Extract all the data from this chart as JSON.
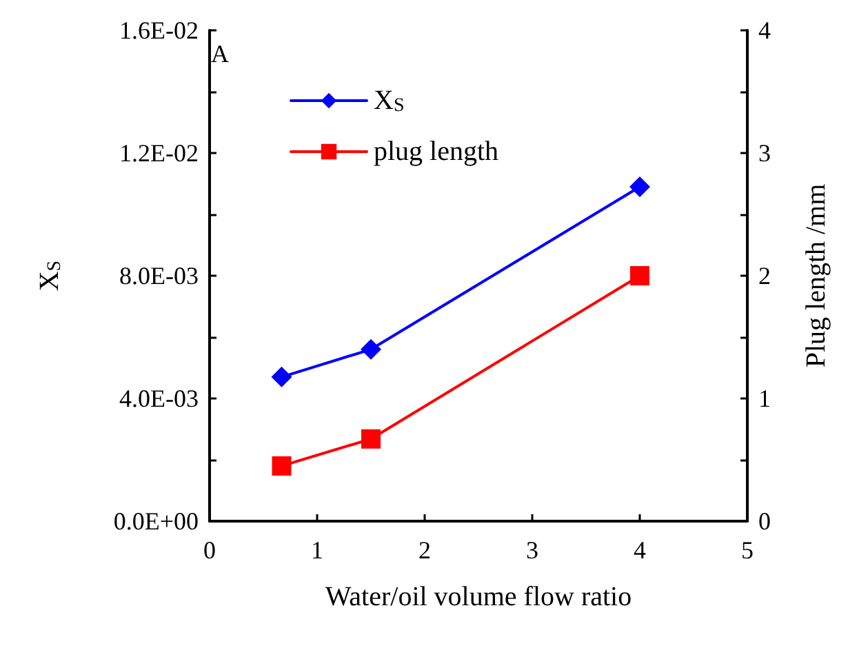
{
  "chart_data": {
    "type": "line",
    "xlabel": "Water/oil volume flow ratio",
    "ylabel": "X$_{S}$",
    "y2label": "Plug length /mm",
    "x": [
      0.67,
      1.5,
      4
    ],
    "series": [
      {
        "name": "X$_{S}$",
        "color": "#0000ff",
        "marker": "diamond",
        "values": [
          0.0047,
          0.0056,
          0.0109
        ]
      },
      {
        "name": "plug length",
        "color": "#ff0000",
        "marker": "square",
        "axis": "y2",
        "values": [
          0.45,
          0.67,
          2.0
        ]
      }
    ],
    "xlim": [
      0,
      5
    ],
    "xticks": [
      0,
      1,
      2,
      3,
      4,
      5
    ],
    "ylim": [
      0,
      0.016
    ],
    "yticks": [
      {
        "value": 0,
        "label": "0.0E+00"
      },
      {
        "value": 0.002,
        "label": null
      },
      {
        "value": 0.004,
        "label": "4.0E-03"
      },
      {
        "value": 0.006,
        "label": null
      },
      {
        "value": 0.008,
        "label": "8.0E-03"
      },
      {
        "value": 0.01,
        "label": null
      },
      {
        "value": 0.012,
        "label": "1.2E-02"
      },
      {
        "value": 0.014,
        "label": null
      },
      {
        "value": 0.016,
        "label": "1.6E-02"
      }
    ],
    "y2lim": [
      0,
      4
    ],
    "y2ticks": [
      0,
      {
        "value": 0.5,
        "label": null
      },
      1,
      {
        "value": 1.5,
        "label": null
      },
      2,
      {
        "value": 2.5,
        "label": null
      },
      3,
      {
        "value": 3.5,
        "label": null
      },
      4
    ],
    "annotations": [
      "A"
    ],
    "legend": "top left",
    "grid": false,
    "line_style": "solid"
  }
}
